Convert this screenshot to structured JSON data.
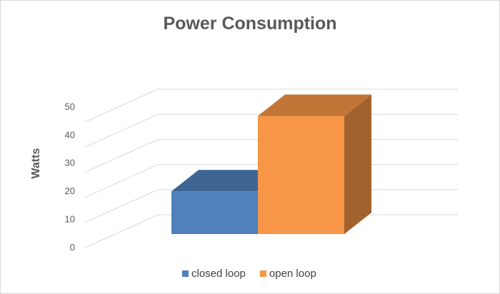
{
  "chart_data": {
    "type": "bar",
    "title": "Power Consumption",
    "xlabel": "",
    "ylabel": "Watts",
    "categories": [
      ""
    ],
    "series": [
      {
        "name": "closed loop",
        "values": [
          17
        ],
        "color": "#4f81bd"
      },
      {
        "name": "open loop",
        "values": [
          47
        ],
        "color": "#f79646"
      }
    ],
    "ylim": [
      0,
      50
    ],
    "yticks": [
      0,
      10,
      20,
      30,
      40,
      50
    ],
    "grid": true,
    "three_d": true,
    "legend": "bottom"
  }
}
